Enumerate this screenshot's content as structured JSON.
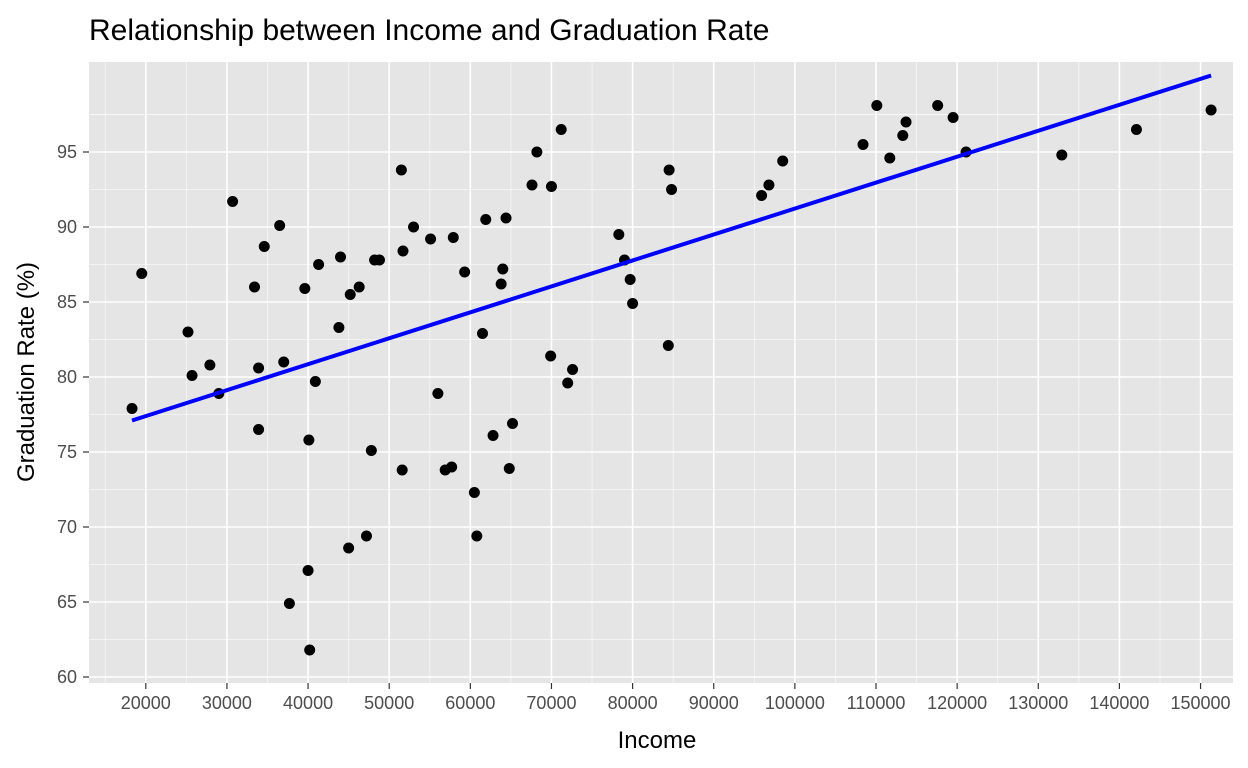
{
  "chart_data": {
    "type": "scatter",
    "title": "Relationship between Income and Graduation Rate",
    "xlabel": "Income",
    "ylabel": "Graduation Rate (%)",
    "xlim": [
      13000,
      154000
    ],
    "ylim": [
      59.6,
      101.0
    ],
    "xticks": [
      20000,
      30000,
      40000,
      50000,
      60000,
      70000,
      80000,
      90000,
      100000,
      110000,
      120000,
      130000,
      140000,
      150000
    ],
    "yticks": [
      60,
      65,
      70,
      75,
      80,
      85,
      90,
      95
    ],
    "grid": true,
    "legend": "none",
    "colors": {
      "panel": "#e5e5e5",
      "grid": "#ffffff",
      "points": "#000000",
      "trend_line": "#0000ff",
      "tick_text": "#4d4d4d",
      "tick_marks": "#333333"
    },
    "points": [
      {
        "x": 18300,
        "y": 77.9
      },
      {
        "x": 19500,
        "y": 86.9
      },
      {
        "x": 25200,
        "y": 83.0
      },
      {
        "x": 25700,
        "y": 80.1
      },
      {
        "x": 27900,
        "y": 80.8
      },
      {
        "x": 29000,
        "y": 78.9
      },
      {
        "x": 30700,
        "y": 91.7
      },
      {
        "x": 33400,
        "y": 86.0
      },
      {
        "x": 33900,
        "y": 80.6
      },
      {
        "x": 33900,
        "y": 76.5
      },
      {
        "x": 34600,
        "y": 88.7
      },
      {
        "x": 36500,
        "y": 90.1
      },
      {
        "x": 37000,
        "y": 81.0
      },
      {
        "x": 37700,
        "y": 64.9
      },
      {
        "x": 39600,
        "y": 85.9
      },
      {
        "x": 40000,
        "y": 67.1
      },
      {
        "x": 40100,
        "y": 75.8
      },
      {
        "x": 40200,
        "y": 61.8
      },
      {
        "x": 40900,
        "y": 79.7
      },
      {
        "x": 41300,
        "y": 87.5
      },
      {
        "x": 43800,
        "y": 83.3
      },
      {
        "x": 44000,
        "y": 88.0
      },
      {
        "x": 45000,
        "y": 68.6
      },
      {
        "x": 45200,
        "y": 85.5
      },
      {
        "x": 46300,
        "y": 86.0
      },
      {
        "x": 47200,
        "y": 69.4
      },
      {
        "x": 47800,
        "y": 75.1
      },
      {
        "x": 48200,
        "y": 87.8
      },
      {
        "x": 48800,
        "y": 87.8
      },
      {
        "x": 51500,
        "y": 93.8
      },
      {
        "x": 51600,
        "y": 73.8
      },
      {
        "x": 51700,
        "y": 88.4
      },
      {
        "x": 53000,
        "y": 90.0
      },
      {
        "x": 55100,
        "y": 89.2
      },
      {
        "x": 56000,
        "y": 78.9
      },
      {
        "x": 56900,
        "y": 73.8
      },
      {
        "x": 57700,
        "y": 74.0
      },
      {
        "x": 57900,
        "y": 89.3
      },
      {
        "x": 59300,
        "y": 87.0
      },
      {
        "x": 60500,
        "y": 72.3
      },
      {
        "x": 60800,
        "y": 69.4
      },
      {
        "x": 61500,
        "y": 82.9
      },
      {
        "x": 61900,
        "y": 90.5
      },
      {
        "x": 62800,
        "y": 76.1
      },
      {
        "x": 63800,
        "y": 86.2
      },
      {
        "x": 64000,
        "y": 87.2
      },
      {
        "x": 64400,
        "y": 90.6
      },
      {
        "x": 64800,
        "y": 73.9
      },
      {
        "x": 65200,
        "y": 76.9
      },
      {
        "x": 67600,
        "y": 92.8
      },
      {
        "x": 68200,
        "y": 95.0
      },
      {
        "x": 69900,
        "y": 81.4
      },
      {
        "x": 70000,
        "y": 92.7
      },
      {
        "x": 71200,
        "y": 96.5
      },
      {
        "x": 72000,
        "y": 79.6
      },
      {
        "x": 72600,
        "y": 80.5
      },
      {
        "x": 78300,
        "y": 89.5
      },
      {
        "x": 79000,
        "y": 87.8
      },
      {
        "x": 79700,
        "y": 86.5
      },
      {
        "x": 80000,
        "y": 84.9
      },
      {
        "x": 84400,
        "y": 82.1
      },
      {
        "x": 84500,
        "y": 93.8
      },
      {
        "x": 84800,
        "y": 92.5
      },
      {
        "x": 95900,
        "y": 92.1
      },
      {
        "x": 96800,
        "y": 92.8
      },
      {
        "x": 98500,
        "y": 94.4
      },
      {
        "x": 108400,
        "y": 95.5
      },
      {
        "x": 110100,
        "y": 98.1
      },
      {
        "x": 111700,
        "y": 94.6
      },
      {
        "x": 113300,
        "y": 96.1
      },
      {
        "x": 113700,
        "y": 97.0
      },
      {
        "x": 117600,
        "y": 98.1
      },
      {
        "x": 119500,
        "y": 97.3
      },
      {
        "x": 121100,
        "y": 95.0
      },
      {
        "x": 132900,
        "y": 94.8
      },
      {
        "x": 142100,
        "y": 96.5
      },
      {
        "x": 151300,
        "y": 97.8
      }
    ],
    "trend_line": {
      "x": [
        18300,
        151300
      ],
      "y": [
        77.1,
        100.1
      ]
    }
  }
}
